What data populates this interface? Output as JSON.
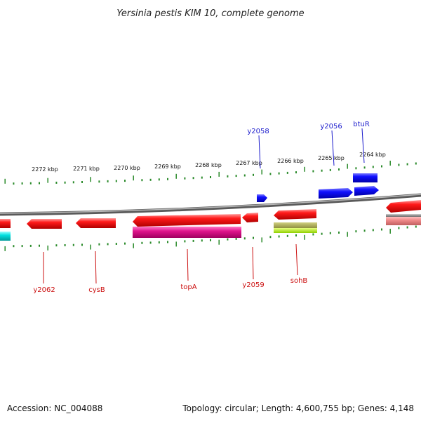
{
  "title": "Yersinia pestis KIM 10, complete genome",
  "scale_labels": [
    "2272 kbp",
    "2271 kbp",
    "2270 kbp",
    "2269 kbp",
    "2268 kbp",
    "2267 kbp",
    "2266 kbp",
    "2265 kbp",
    "2264 kbp"
  ],
  "genes_top": [
    "y2058",
    "y2056",
    "btuR"
  ],
  "genes_bottom": [
    "y2062",
    "cysB",
    "topA",
    "y2059",
    "sohB"
  ],
  "footer": {
    "accession": "Accession: NC_004088",
    "stats": "Topology: circular; Length: 4,600,755 bp; Genes: 4,148"
  },
  "colors": {
    "forward_gene": "#0000ee",
    "reverse_gene": "#ee0000",
    "rna_gene": "#e0148c",
    "tick": "#2a8a2a",
    "backbone": "#808080",
    "top_label": "#1a1acc",
    "bottom_label": "#cc1111"
  }
}
